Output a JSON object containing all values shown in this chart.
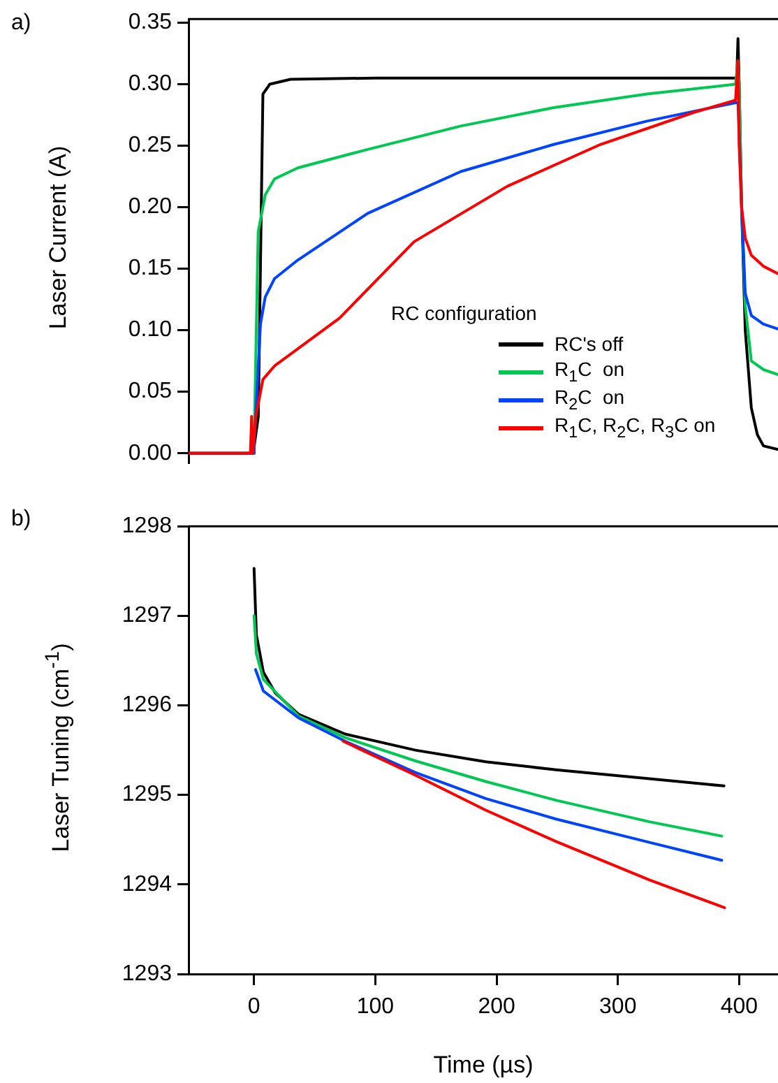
{
  "chart_data": [
    {
      "type": "line",
      "annotations": [
        "a)"
      ],
      "ylabel": "Laser Current (A)",
      "legend_title": "RC configuration",
      "legend": "bottom right",
      "tick_labels": "y",
      "xlim": [
        -54,
        432
      ],
      "ylim": [
        -0.008,
        0.353
      ],
      "yticks": [
        {
          "value": 0,
          "label": "0.00"
        },
        0.05,
        {
          "value": 0.1,
          "label": "0.10"
        },
        0.15,
        {
          "value": 0.2,
          "label": "0.20"
        },
        0.25,
        {
          "value": 0.3,
          "label": "0.30"
        },
        0.35
      ],
      "series": [
        {
          "name": "RC's off",
          "color": "#000000",
          "x": [
            -54,
            -1,
            0,
            3.5,
            7.3,
            13,
            30,
            100,
            200,
            300,
            398,
            399,
            400,
            402,
            405,
            410,
            415,
            420,
            432
          ],
          "values": [
            0,
            0,
            0.005,
            0.03,
            0.292,
            0.3,
            0.304,
            0.305,
            0.305,
            0.305,
            0.305,
            0.337,
            0.3,
            0.2,
            0.1,
            0.037,
            0.015,
            0.006,
            0.003
          ]
        },
        {
          "name": "R$_{1}$C  on",
          "color": "#00c853",
          "x": [
            -54,
            -1,
            0,
            3.4,
            9.2,
            16.9,
            36.1,
            93.7,
            170.5,
            247.2,
            324,
            397,
            399,
            400,
            402,
            405,
            410,
            420,
            432
          ],
          "values": [
            0,
            0,
            0.005,
            0.18,
            0.21,
            0.223,
            0.232,
            0.247,
            0.266,
            0.281,
            0.292,
            0.3,
            0.319,
            0.3,
            0.2,
            0.12,
            0.075,
            0.068,
            0.064
          ]
        },
        {
          "name": "R$_{2}$C  on",
          "color": "#0044ff",
          "x": [
            -54,
            -1,
            0,
            5.3,
            9.2,
            16.9,
            36,
            93.7,
            170.5,
            247,
            324,
            397,
            399,
            402,
            405,
            410,
            420,
            432
          ],
          "values": [
            0,
            0,
            0.005,
            0.105,
            0.127,
            0.142,
            0.157,
            0.195,
            0.229,
            0.251,
            0.27,
            0.285,
            0.285,
            0.2,
            0.13,
            0.112,
            0.105,
            0.101
          ]
        },
        {
          "name": "R$_{1}$C, R$_{2}$C, R$_{3}$C on",
          "color": "#ff0000",
          "x": [
            -54,
            -3,
            -2,
            -1,
            0,
            1.5,
            7.3,
            16.9,
            70.6,
            132,
            208.8,
            285.6,
            362.4,
            397,
            399,
            400,
            402,
            405,
            410,
            420,
            432
          ],
          "values": [
            0,
            0,
            0.03,
            0,
            0,
            0.03,
            0.06,
            0.071,
            0.11,
            0.172,
            0.217,
            0.251,
            0.277,
            0.287,
            0.319,
            0.25,
            0.2,
            0.175,
            0.161,
            0.152,
            0.146
          ]
        }
      ]
    },
    {
      "type": "line",
      "annotations": [
        "b)"
      ],
      "ylabel": "Laser Tuning (cm$^{-1}$)",
      "xlabel": "Time (µs)",
      "xlim": [
        -54,
        432
      ],
      "xticks": [
        0,
        100,
        200,
        300,
        400
      ],
      "ylim": [
        1293,
        1298
      ],
      "yticks": [
        1293,
        1294,
        1295,
        1296,
        1297,
        1298
      ],
      "series": [
        {
          "color": "#000000",
          "x": [
            0,
            1.9,
            7.7,
            17.4,
            36.7,
            75,
            133,
            191,
            249,
            326,
            387.5
          ],
          "values": [
            1297.53,
            1296.79,
            1296.37,
            1296.14,
            1295.9,
            1295.68,
            1295.5,
            1295.37,
            1295.28,
            1295.18,
            1295.1
          ]
        },
        {
          "color": "#00c853",
          "x": [
            0,
            1.9,
            7.7,
            36.7,
            75,
            133,
            191,
            249,
            326,
            385.6
          ],
          "values": [
            1297.0,
            1296.58,
            1296.29,
            1295.88,
            1295.64,
            1295.38,
            1295.15,
            1294.94,
            1294.7,
            1294.54
          ]
        },
        {
          "color": "#0044ff",
          "x": [
            1.2,
            7.7,
            36.7,
            75,
            133,
            191,
            249,
            326,
            385.6
          ],
          "values": [
            1296.4,
            1296.16,
            1295.86,
            1295.6,
            1295.25,
            1294.96,
            1294.73,
            1294.47,
            1294.27
          ]
        },
        {
          "color": "#ff0000",
          "x": [
            73.4,
            133,
            191,
            249,
            326,
            388
          ],
          "values": [
            1295.6,
            1295.22,
            1294.83,
            1294.48,
            1294.05,
            1293.74
          ]
        }
      ]
    }
  ]
}
